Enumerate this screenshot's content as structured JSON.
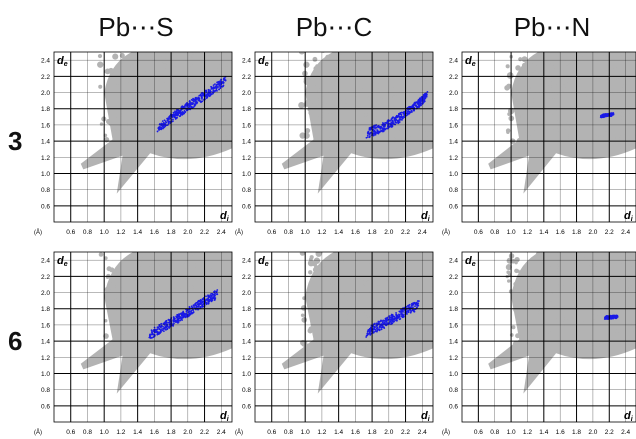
{
  "column_titles": [
    "Pb⋯S",
    "Pb⋯C",
    "Pb⋯N"
  ],
  "row_labels": [
    "3",
    "6"
  ],
  "axis": {
    "de_label": "d",
    "de_sub": "e",
    "di_label": "d",
    "di_sub": "i",
    "unit": "(Å)",
    "x_ticks": [
      "0.6",
      "0.8",
      "1.0",
      "1.2",
      "1.4",
      "1.6",
      "1.8",
      "2.0",
      "2.2",
      "2.4"
    ],
    "y_ticks": [
      "2.4",
      "2.2",
      "2.0",
      "1.8",
      "1.6",
      "1.4",
      "1.2",
      "1.0",
      "0.8",
      "0.6"
    ]
  },
  "colors": {
    "full_plot": "#b3b3b3",
    "highlight": "#1a1ae6",
    "grid": "#000000"
  },
  "chart_data": [
    {
      "type": "scatter",
      "title": "Pb⋯S",
      "row": "3",
      "xlim": [
        0.4,
        2.6
      ],
      "ylim": [
        0.4,
        2.6
      ],
      "highlight": {
        "x": [
          1.65,
          1.85,
          2.05,
          2.25,
          2.45
        ],
        "y": [
          1.56,
          1.72,
          1.86,
          2.0,
          2.15
        ]
      }
    },
    {
      "type": "scatter",
      "title": "Pb⋯C",
      "row": "3",
      "xlim": [
        0.4,
        2.6
      ],
      "ylim": [
        0.4,
        2.6
      ],
      "highlight": {
        "x": [
          1.75,
          1.95,
          2.15,
          2.35,
          2.45
        ],
        "y": [
          1.5,
          1.58,
          1.7,
          1.86,
          1.95
        ]
      }
    },
    {
      "type": "scatter",
      "title": "Pb⋯N",
      "row": "3",
      "xlim": [
        0.4,
        2.6
      ],
      "ylim": [
        0.4,
        2.6
      ],
      "highlight": {
        "x": [
          2.1,
          2.25
        ],
        "y": [
          1.71,
          1.73
        ]
      }
    },
    {
      "type": "scatter",
      "title": "Pb⋯S",
      "row": "6",
      "xlim": [
        0.4,
        2.6
      ],
      "ylim": [
        0.4,
        2.6
      ],
      "highlight": {
        "x": [
          1.55,
          1.75,
          1.95,
          2.15,
          2.35
        ],
        "y": [
          1.48,
          1.6,
          1.72,
          1.86,
          1.98
        ]
      }
    },
    {
      "type": "scatter",
      "title": "Pb⋯C",
      "row": "6",
      "xlim": [
        0.4,
        2.6
      ],
      "ylim": [
        0.4,
        2.6
      ],
      "highlight": {
        "x": [
          1.75,
          1.95,
          2.15,
          2.35
        ],
        "y": [
          1.52,
          1.62,
          1.74,
          1.84
        ]
      }
    },
    {
      "type": "scatter",
      "title": "Pb⋯N",
      "row": "6",
      "xlim": [
        0.4,
        2.6
      ],
      "ylim": [
        0.4,
        2.6
      ],
      "highlight": {
        "x": [
          2.15,
          2.3
        ],
        "y": [
          1.69,
          1.7
        ]
      }
    }
  ]
}
